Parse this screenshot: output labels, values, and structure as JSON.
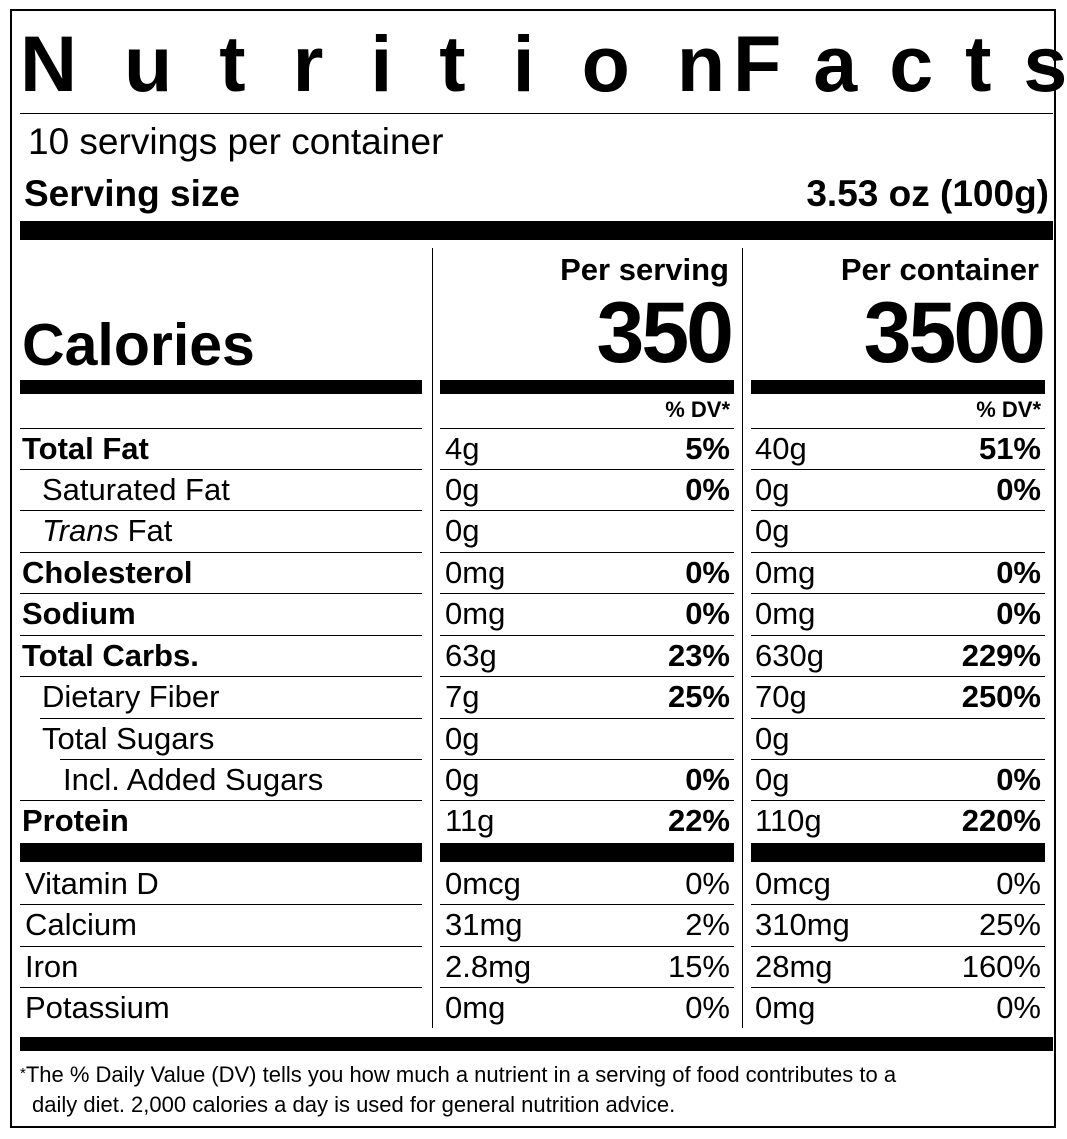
{
  "title": {
    "word1": "Nutrition",
    "word2": "Facts"
  },
  "servings_per_container": "10 servings per container",
  "serving_size": {
    "label": "Serving size",
    "value": "3.53 oz (100g)"
  },
  "calories": {
    "label": "Calories",
    "per_serving_label": "Per serving",
    "per_serving_value": "350",
    "per_container_label": "Per container",
    "per_container_value": "3500"
  },
  "dv_header": "% DV*",
  "nutrients": [
    {
      "name": "Total Fat",
      "serving": "4g",
      "serving_dv": "5%",
      "container": "40g",
      "container_dv": "51%"
    },
    {
      "name": "Saturated Fat",
      "serving": "0g",
      "serving_dv": "0%",
      "container": "0g",
      "container_dv": "0%"
    },
    {
      "name_italic": "Trans",
      "name_rest": " Fat",
      "serving": "0g",
      "serving_dv": "",
      "container": "0g",
      "container_dv": ""
    },
    {
      "name": "Cholesterol",
      "serving": "0mg",
      "serving_dv": "0%",
      "container": "0mg",
      "container_dv": "0%"
    },
    {
      "name": "Sodium",
      "serving": "0mg",
      "serving_dv": "0%",
      "container": "0mg",
      "container_dv": "0%"
    },
    {
      "name": "Total Carbs.",
      "serving": "63g",
      "serving_dv": "23%",
      "container": "630g",
      "container_dv": "229%"
    },
    {
      "name": "Dietary Fiber",
      "serving": "7g",
      "serving_dv": "25%",
      "container": "70g",
      "container_dv": "250%"
    },
    {
      "name": "Total Sugars",
      "serving": "0g",
      "serving_dv": "",
      "container": "0g",
      "container_dv": ""
    },
    {
      "name": "Incl. Added Sugars",
      "serving": "0g",
      "serving_dv": "0%",
      "container": "0g",
      "container_dv": "0%"
    },
    {
      "name": "Protein",
      "serving": "11g",
      "serving_dv": "22%",
      "container": "110g",
      "container_dv": "220%"
    }
  ],
  "vitamins": [
    {
      "name": "Vitamin D",
      "serving": "0mcg",
      "serving_dv": "0%",
      "container": "0mcg",
      "container_dv": "0%"
    },
    {
      "name": "Calcium",
      "serving": "31mg",
      "serving_dv": "2%",
      "container": "310mg",
      "container_dv": "25%"
    },
    {
      "name": "Iron",
      "serving": "2.8mg",
      "serving_dv": "15%",
      "container": "28mg",
      "container_dv": "160%"
    },
    {
      "name": "Potassium",
      "serving": "0mg",
      "serving_dv": "0%",
      "container": "0mg",
      "container_dv": "0%"
    }
  ],
  "footnote": {
    "star": "*",
    "line1": "The % Daily Value (DV) tells you how much a nutrient in a serving of food contributes to a",
    "line2": "daily diet. 2,000 calories a day is used for general nutrition advice."
  }
}
